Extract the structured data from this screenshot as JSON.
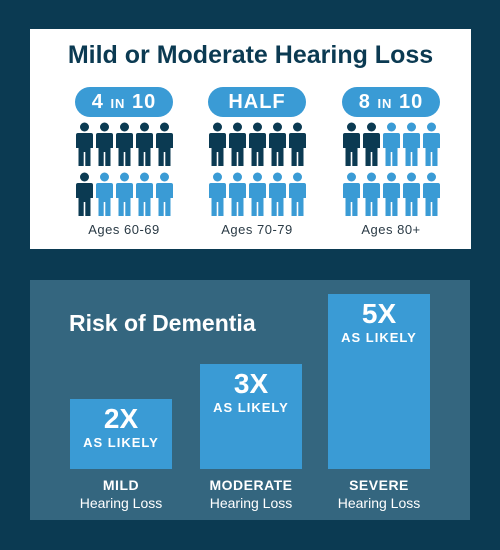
{
  "hearing": {
    "title": "Mild or Moderate Hearing Loss",
    "groups": [
      {
        "stat_big": "4",
        "stat_small": "IN",
        "stat_end": "10",
        "age": "Ages 60-69",
        "affected": 4,
        "total": 10
      },
      {
        "stat_big": "HALF",
        "stat_small": "",
        "stat_end": "",
        "age": "Ages 70-79",
        "affected": 5,
        "total": 10
      },
      {
        "stat_big": "8",
        "stat_small": "IN",
        "stat_end": "10",
        "age": "Ages 80+",
        "affected": 8,
        "total": 10
      }
    ]
  },
  "colors": {
    "dark_navy": "#0b3a52",
    "accent_blue": "#3a9bd5",
    "panel_blue": "#34667f"
  },
  "chart_data": {
    "type": "bar",
    "title": "Risk of Dementia",
    "categories": [
      "MILD",
      "MODERATE",
      "SEVERE"
    ],
    "category_sub": [
      "Hearing Loss",
      "Hearing Loss",
      "Hearing Loss"
    ],
    "values": [
      2,
      3,
      5
    ],
    "value_labels": [
      "2X",
      "3X",
      "5X"
    ],
    "value_suffix": "AS LIKELY",
    "ylim": [
      0,
      5
    ]
  }
}
